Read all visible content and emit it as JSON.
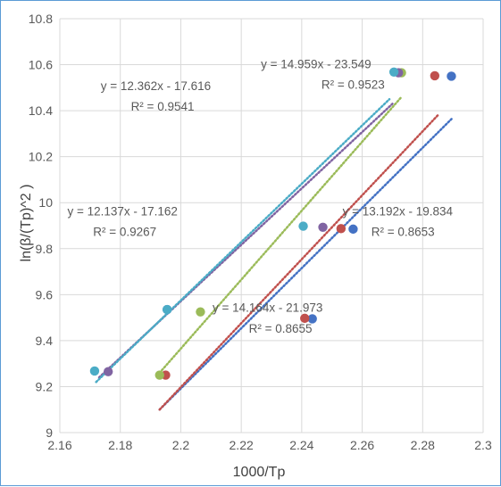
{
  "chart_data": {
    "type": "scatter",
    "title": "",
    "xlabel": "1000/Tp",
    "ylabel": "ln(β/(Tp)^2 )",
    "xlim": [
      2.16,
      2.3
    ],
    "ylim": [
      9.0,
      10.8
    ],
    "x_ticks": [
      "2.16",
      "2.18",
      "2.2",
      "2.22",
      "2.24",
      "2.26",
      "2.28",
      "2.3"
    ],
    "y_ticks": [
      "9",
      "9.2",
      "9.4",
      "9.6",
      "9.8",
      "10",
      "10.2",
      "10.4",
      "10.6",
      "10.8"
    ],
    "grid": true,
    "legend": "none",
    "series": [
      {
        "color": "#4472c4",
        "x": [
          2.1955,
          2.2435,
          2.257,
          2.2895
        ],
        "y": [
          9.535,
          9.495,
          9.885,
          10.55
        ],
        "trendline": {
          "x": [
            2.193,
            2.29
          ],
          "y": [
            9.1,
            10.37
          ]
        }
      },
      {
        "color": "#c0504d",
        "x": [
          2.195,
          2.241,
          2.253,
          2.284
        ],
        "y": [
          9.25,
          9.497,
          9.887,
          10.552
        ],
        "trendline": {
          "x": [
            2.193,
            2.285
          ],
          "y": [
            9.1,
            10.38
          ]
        }
      },
      {
        "color": "#9bbb59",
        "x": [
          2.193,
          2.2065,
          2.273
        ],
        "y": [
          9.25,
          9.525,
          10.565
        ],
        "trendline": {
          "x": [
            2.193,
            2.273
          ],
          "y": [
            9.26,
            10.46
          ]
        }
      },
      {
        "color": "#8064a2",
        "x": [
          2.176,
          2.247,
          2.272
        ],
        "y": [
          9.265,
          9.893,
          10.565
        ],
        "trendline": {
          "x": [
            2.173,
            2.27
          ],
          "y": [
            9.24,
            10.43
          ]
        }
      },
      {
        "color": "#4bacc6",
        "x": [
          2.1715,
          2.1955,
          2.2405,
          2.2705
        ],
        "y": [
          9.268,
          9.535,
          9.898,
          10.568
        ],
        "trendline": {
          "x": [
            2.172,
            2.269
          ],
          "y": [
            9.22,
            10.45
          ]
        }
      }
    ],
    "annotations": [
      {
        "eq": "y = 12.362x - 17.616",
        "r2": "R² = 0.9541",
        "ax": 2.1735,
        "ay": 10.49,
        "r2x": 2.1835,
        "r2y": 10.4
      },
      {
        "eq": "y = 14.959x - 23.549",
        "r2": "R² = 0.9523",
        "ax": 2.2265,
        "ay": 10.585,
        "r2x": 2.2465,
        "r2y": 10.495
      },
      {
        "eq": "y = 12.137x - 17.162",
        "r2": "R² = 0.9267",
        "ax": 2.1625,
        "ay": 9.945,
        "r2x": 2.171,
        "r2y": 9.855
      },
      {
        "eq": "y = 13.192x - 19.834",
        "r2": "R² = 0.8653",
        "ax": 2.2535,
        "ay": 9.945,
        "r2x": 2.263,
        "r2y": 9.855
      },
      {
        "eq": "y = 14.164x - 21.973",
        "r2": "R² = 0.8655",
        "ax": 2.2105,
        "ay": 9.525,
        "r2x": 2.2225,
        "r2y": 9.435
      }
    ]
  }
}
